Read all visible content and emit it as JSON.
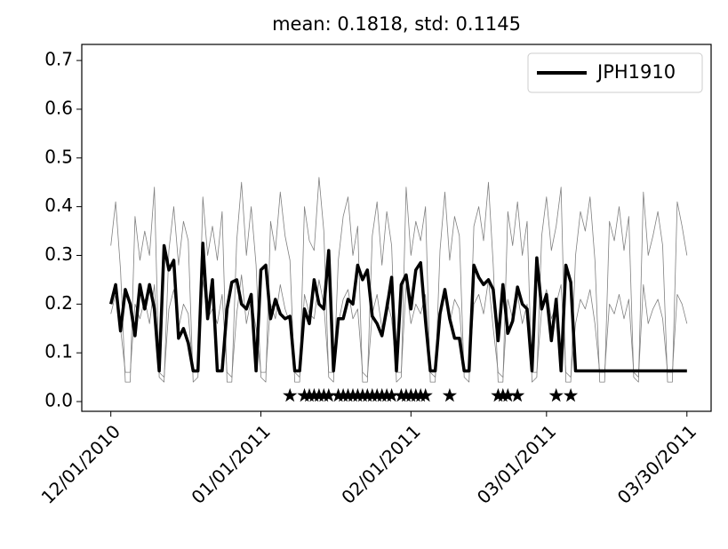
{
  "chart_data": {
    "type": "line",
    "title": "mean: 0.1818, std: 0.1145",
    "x": [
      "12/01/2010",
      "12/02/2010",
      "12/03/2010",
      "12/04/2010",
      "12/05/2010",
      "12/06/2010",
      "12/07/2010",
      "12/08/2010",
      "12/09/2010",
      "12/10/2010",
      "12/11/2010",
      "12/12/2010",
      "12/13/2010",
      "12/14/2010",
      "12/15/2010",
      "12/16/2010",
      "12/17/2010",
      "12/18/2010",
      "12/19/2010",
      "12/20/2010",
      "12/21/2010",
      "12/22/2010",
      "12/23/2010",
      "12/24/2010",
      "12/25/2010",
      "12/26/2010",
      "12/27/2010",
      "12/28/2010",
      "12/29/2010",
      "12/30/2010",
      "12/31/2010",
      "01/01/2011",
      "01/02/2011",
      "01/03/2011",
      "01/04/2011",
      "01/05/2011",
      "01/06/2011",
      "01/07/2011",
      "01/08/2011",
      "01/09/2011",
      "01/10/2011",
      "01/11/2011",
      "01/12/2011",
      "01/13/2011",
      "01/14/2011",
      "01/15/2011",
      "01/16/2011",
      "01/17/2011",
      "01/18/2011",
      "01/19/2011",
      "01/20/2011",
      "01/21/2011",
      "01/22/2011",
      "01/23/2011",
      "01/24/2011",
      "01/25/2011",
      "01/26/2011",
      "01/27/2011",
      "01/28/2011",
      "01/29/2011",
      "01/30/2011",
      "01/31/2011",
      "02/01/2011",
      "02/02/2011",
      "02/03/2011",
      "02/04/2011",
      "02/05/2011",
      "02/06/2011",
      "02/07/2011",
      "02/08/2011",
      "02/09/2011",
      "02/10/2011",
      "02/11/2011",
      "02/12/2011",
      "02/13/2011",
      "02/14/2011",
      "02/15/2011",
      "02/16/2011",
      "02/17/2011",
      "02/18/2011",
      "02/19/2011",
      "02/20/2011",
      "02/21/2011",
      "02/22/2011",
      "02/23/2011",
      "02/24/2011",
      "02/25/2011",
      "02/26/2011",
      "02/27/2011",
      "02/28/2011",
      "03/01/2011",
      "03/02/2011",
      "03/03/2011",
      "03/04/2011",
      "03/05/2011",
      "03/06/2011",
      "03/07/2011",
      "03/08/2011",
      "03/09/2011",
      "03/10/2011",
      "03/11/2011",
      "03/12/2011",
      "03/13/2011",
      "03/14/2011",
      "03/15/2011",
      "03/16/2011",
      "03/17/2011",
      "03/18/2011",
      "03/19/2011",
      "03/20/2011",
      "03/21/2011",
      "03/22/2011",
      "03/23/2011",
      "03/24/2011",
      "03/25/2011",
      "03/26/2011",
      "03/27/2011",
      "03/28/2011",
      "03/29/2011",
      "03/30/2011"
    ],
    "series": [
      {
        "color": "#808080",
        "values": [
          0.32,
          0.41,
          0.27,
          0.04,
          0.04,
          0.38,
          0.29,
          0.35,
          0.3,
          0.44,
          0.05,
          0.04,
          0.31,
          0.4,
          0.28,
          0.37,
          0.33,
          0.04,
          0.05,
          0.42,
          0.3,
          0.36,
          0.29,
          0.39,
          0.04,
          0.04,
          0.33,
          0.45,
          0.3,
          0.4,
          0.28,
          0.05,
          0.04,
          0.37,
          0.31,
          0.43,
          0.34,
          0.29,
          0.04,
          0.04,
          0.4,
          0.33,
          0.31,
          0.46,
          0.35,
          0.05,
          0.04,
          0.29,
          0.38,
          0.42,
          0.3,
          0.36,
          0.04,
          0.04,
          0.34,
          0.41,
          0.28,
          0.39,
          0.32,
          0.04,
          0.05,
          0.44,
          0.3,
          0.37,
          0.33,
          0.4,
          0.04,
          0.04,
          0.31,
          0.43,
          0.29,
          0.38,
          0.34,
          0.05,
          0.04,
          0.36,
          0.4,
          0.33,
          0.45,
          0.28,
          0.04,
          0.04,
          0.39,
          0.32,
          0.41,
          0.3,
          0.37,
          0.04,
          0.05,
          0.34,
          0.42,
          0.31,
          0.36,
          0.44,
          0.04,
          0.04,
          0.3,
          0.39,
          0.35,
          0.42,
          0.29,
          0.04,
          0.04,
          0.37,
          0.33,
          0.4,
          0.31,
          0.38,
          0.05,
          0.04,
          0.43,
          0.3,
          0.34,
          0.39,
          0.32,
          0.04,
          0.04,
          0.41,
          0.36,
          0.3
        ]
      },
      {
        "color": "#808080",
        "values": [
          0.18,
          0.22,
          0.15,
          0.06,
          0.06,
          0.2,
          0.17,
          0.21,
          0.16,
          0.24,
          0.06,
          0.05,
          0.19,
          0.23,
          0.15,
          0.2,
          0.18,
          0.06,
          0.06,
          0.25,
          0.17,
          0.19,
          0.16,
          0.22,
          0.06,
          0.05,
          0.18,
          0.26,
          0.16,
          0.21,
          0.15,
          0.06,
          0.06,
          0.2,
          0.17,
          0.24,
          0.19,
          0.16,
          0.06,
          0.05,
          0.22,
          0.18,
          0.17,
          0.25,
          0.2,
          0.06,
          0.06,
          0.16,
          0.21,
          0.23,
          0.17,
          0.19,
          0.06,
          0.05,
          0.18,
          0.22,
          0.15,
          0.21,
          0.17,
          0.06,
          0.06,
          0.24,
          0.16,
          0.2,
          0.18,
          0.22,
          0.06,
          0.05,
          0.17,
          0.23,
          0.16,
          0.21,
          0.19,
          0.06,
          0.06,
          0.2,
          0.22,
          0.18,
          0.25,
          0.15,
          0.06,
          0.05,
          0.21,
          0.17,
          0.22,
          0.16,
          0.2,
          0.06,
          0.06,
          0.19,
          0.23,
          0.17,
          0.2,
          0.24,
          0.06,
          0.05,
          0.16,
          0.21,
          0.19,
          0.23,
          0.16,
          0.06,
          0.06,
          0.2,
          0.18,
          0.22,
          0.17,
          0.21,
          0.06,
          0.05,
          0.24,
          0.16,
          0.19,
          0.21,
          0.17,
          0.06,
          0.06,
          0.22,
          0.2,
          0.16
        ]
      },
      {
        "name": "JPH1910",
        "color": "#000000",
        "values": [
          0.2,
          0.24,
          0.145,
          0.23,
          0.2,
          0.135,
          0.24,
          0.19,
          0.24,
          0.19,
          0.063,
          0.32,
          0.27,
          0.29,
          0.13,
          0.15,
          0.12,
          0.063,
          0.063,
          0.325,
          0.17,
          0.25,
          0.063,
          0.063,
          0.19,
          0.245,
          0.25,
          0.2,
          0.19,
          0.22,
          0.063,
          0.27,
          0.28,
          0.17,
          0.21,
          0.18,
          0.17,
          0.175,
          0.063,
          0.063,
          0.19,
          0.16,
          0.25,
          0.2,
          0.19,
          0.31,
          0.063,
          0.17,
          0.17,
          0.21,
          0.2,
          0.28,
          0.25,
          0.27,
          0.175,
          0.16,
          0.135,
          0.19,
          0.255,
          0.063,
          0.24,
          0.26,
          0.19,
          0.27,
          0.285,
          0.165,
          0.063,
          0.063,
          0.18,
          0.23,
          0.17,
          0.13,
          0.13,
          0.063,
          0.063,
          0.28,
          0.255,
          0.24,
          0.25,
          0.23,
          0.125,
          0.24,
          0.14,
          0.165,
          0.235,
          0.2,
          0.19,
          0.063,
          0.295,
          0.19,
          0.22,
          0.125,
          0.21,
          0.063,
          0.28,
          0.245,
          0.063,
          0.063,
          0.063,
          0.063,
          0.063,
          0.063,
          0.063,
          0.063,
          0.063,
          0.063,
          0.063,
          0.063,
          0.063,
          0.063,
          0.063,
          0.063,
          0.063,
          0.063,
          0.063,
          0.063,
          0.063,
          0.063,
          0.063,
          0.063
        ]
      }
    ],
    "markers": {
      "color": "#000000",
      "x": [
        "01/07/2011",
        "01/10/2011",
        "01/11/2011",
        "01/12/2011",
        "01/13/2011",
        "01/14/2011",
        "01/15/2011",
        "01/17/2011",
        "01/18/2011",
        "01/19/2011",
        "01/20/2011",
        "01/21/2011",
        "01/22/2011",
        "01/23/2011",
        "01/24/2011",
        "01/25/2011",
        "01/26/2011",
        "01/27/2011",
        "01/28/2011",
        "01/30/2011",
        "01/31/2011",
        "02/01/2011",
        "02/02/2011",
        "02/03/2011",
        "02/04/2011",
        "02/09/2011",
        "02/19/2011",
        "02/20/2011",
        "02/21/2011",
        "02/23/2011",
        "03/03/2011",
        "03/06/2011"
      ],
      "y": [
        0.012,
        0.012,
        0.012,
        0.012,
        0.012,
        0.012,
        0.012,
        0.012,
        0.012,
        0.012,
        0.012,
        0.012,
        0.012,
        0.012,
        0.012,
        0.012,
        0.012,
        0.012,
        0.012,
        0.012,
        0.012,
        0.012,
        0.012,
        0.012,
        0.012,
        0.012,
        0.012,
        0.012,
        0.012,
        0.012,
        0.012,
        0.012
      ]
    },
    "xlim": [
      "11/25/2010",
      "04/04/2011"
    ],
    "xticks": [
      "12/01/2010",
      "01/01/2011",
      "02/01/2011",
      "03/01/2011",
      "03/30/2011"
    ],
    "ylim": [
      -0.02,
      0.733
    ],
    "yticks": [
      {
        "value": 0,
        "label": "0.0"
      },
      0.1,
      0.2,
      0.3,
      0.4,
      0.5,
      0.6,
      0.7
    ],
    "legend": "upper right"
  }
}
